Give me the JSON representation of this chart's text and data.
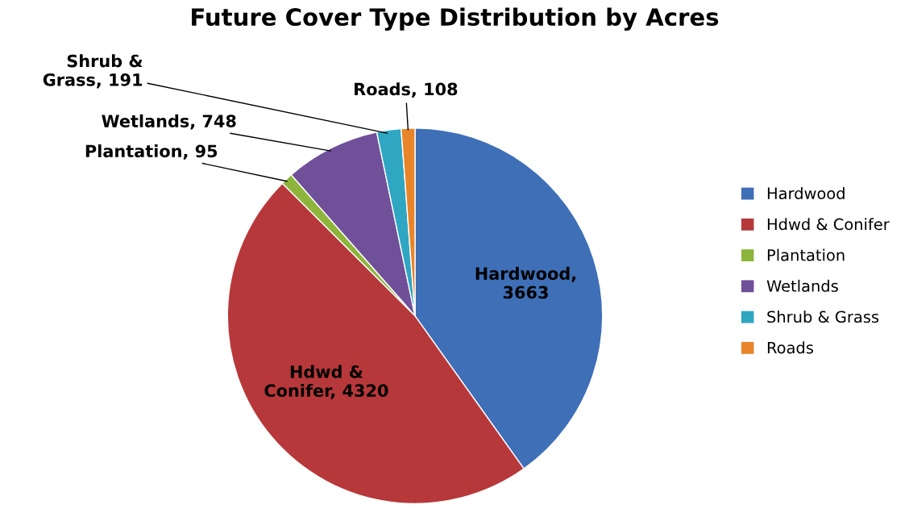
{
  "chart_data": {
    "type": "pie",
    "title": "Future Cover Type Distribution by Acres",
    "categories": [
      "Hardwood",
      "Hdwd & Conifer",
      "Plantation",
      "Wetlands",
      "Shrub & Grass",
      "Roads"
    ],
    "values": [
      3663,
      4320,
      95,
      748,
      191,
      108
    ],
    "colors": [
      "#3e6fb7",
      "#b7383a",
      "#8db53c",
      "#71509a",
      "#2fa6c2",
      "#e8852a"
    ],
    "value_labels": [
      "Hardwood,\n3663",
      "Hdwd &\nConifer, 4320",
      "Plantation, 95",
      "Wetlands, 748",
      "Shrub &\nGrass, 191",
      "Roads, 108"
    ],
    "legend": "right"
  }
}
